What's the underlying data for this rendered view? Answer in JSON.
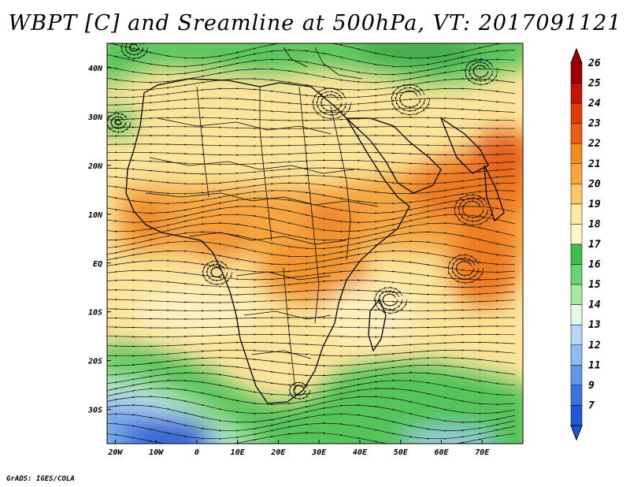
{
  "title": "WBPT [C] and Sreamline at 500hPa, VT: 2017091121",
  "credit": "GrADS: IGES/COLA",
  "map": {
    "lat_labels": [
      "40N",
      "30N",
      "20N",
      "10N",
      "EQ",
      "10S",
      "20S",
      "30S"
    ],
    "lat_values": [
      40,
      30,
      20,
      10,
      0,
      -10,
      -20,
      -30
    ],
    "lon_labels": [
      "20W",
      "10W",
      "0",
      "10E",
      "20E",
      "30E",
      "40E",
      "50E",
      "60E",
      "70E"
    ],
    "lon_values": [
      -20,
      -10,
      0,
      10,
      20,
      30,
      40,
      50,
      60,
      70
    ],
    "lon_range": [
      -22,
      80
    ],
    "lat_range": [
      -37,
      45
    ],
    "field": "wet-bulb potential temperature",
    "overlay": "streamlines"
  },
  "colorbar": {
    "labels": [
      "26",
      "25",
      "24",
      "23",
      "22",
      "21",
      "20",
      "19",
      "18",
      "17",
      "16",
      "15",
      "14",
      "13",
      "12",
      "11",
      "9",
      "7"
    ],
    "colors": [
      "#a00000",
      "#c41400",
      "#e03c00",
      "#ef5a14",
      "#f78a1c",
      "#f9a53a",
      "#fcc865",
      "#feeaa2",
      "#fff6c8",
      "#3fbf4a",
      "#6bd373",
      "#a6eaa2",
      "#e3fbe2",
      "#b7d8f5",
      "#8dbcf0",
      "#5f97e6",
      "#3a74dc",
      "#1e5ad2"
    ]
  }
}
